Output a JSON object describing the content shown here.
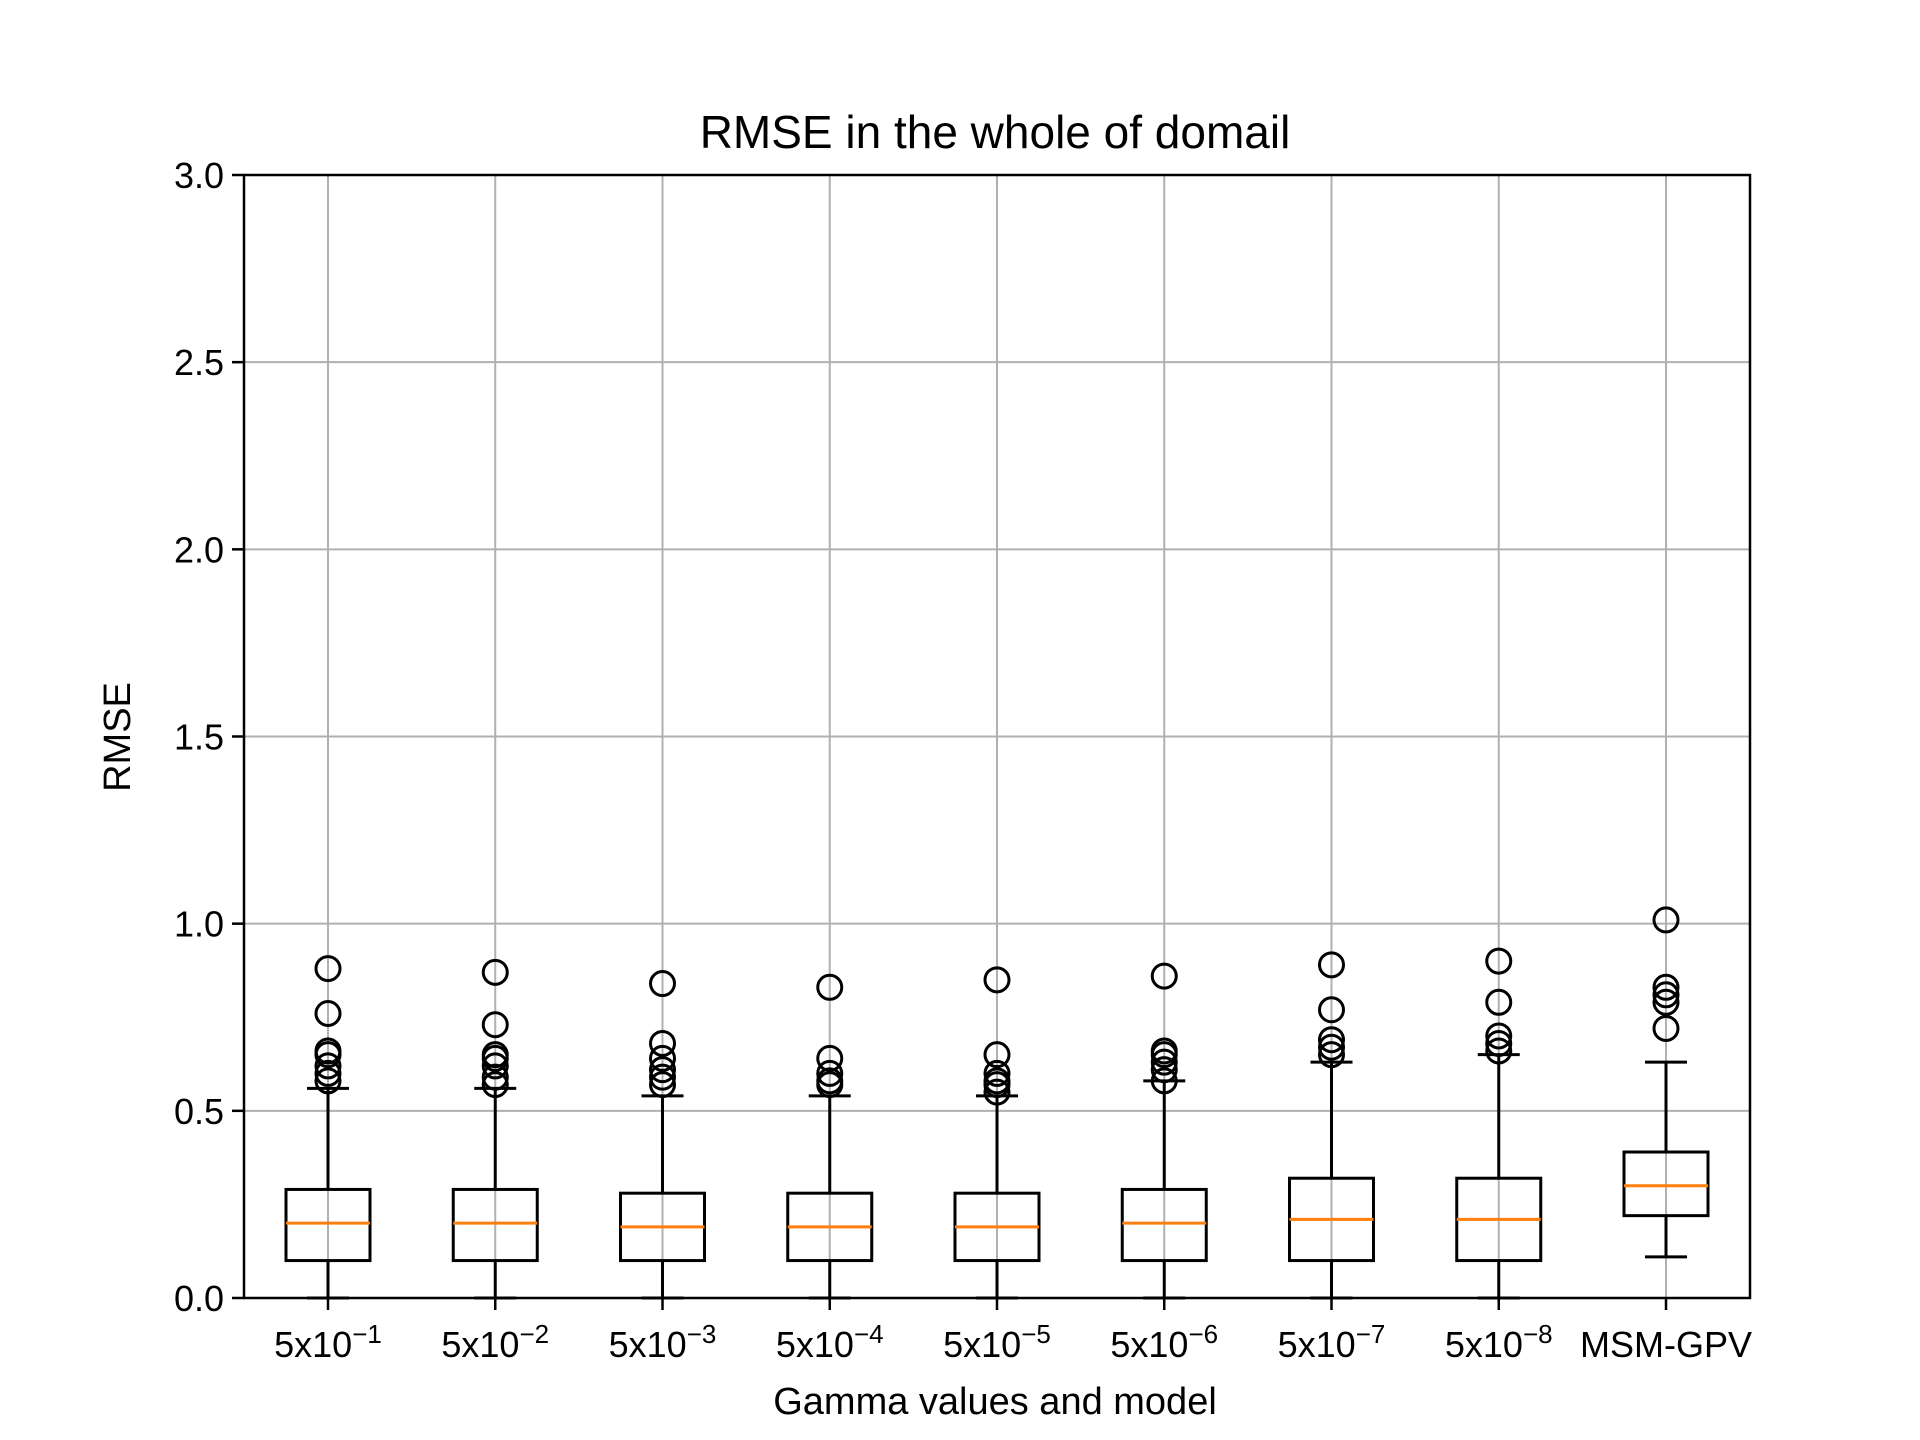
{
  "chart_data": {
    "type": "box",
    "title": "RMSE in the whole of domail",
    "xlabel": "Gamma values and model",
    "ylabel": "RMSE",
    "ylim": [
      0,
      3.0
    ],
    "yticks": [
      "0.0",
      "0.5",
      "1.0",
      "1.5",
      "2.0",
      "2.5",
      "3.0"
    ],
    "grid": true,
    "categories": [
      {
        "base": "5x10",
        "exp": "−1"
      },
      {
        "base": "5x10",
        "exp": "−2"
      },
      {
        "base": "5x10",
        "exp": "−3"
      },
      {
        "base": "5x10",
        "exp": "−4"
      },
      {
        "base": "5x10",
        "exp": "−5"
      },
      {
        "base": "5x10",
        "exp": "−6"
      },
      {
        "base": "5x10",
        "exp": "−7"
      },
      {
        "base": "5x10",
        "exp": "−8"
      },
      {
        "base": "MSM-GPV",
        "exp": ""
      }
    ],
    "boxes": [
      {
        "whislo": 0.0,
        "q1": 0.1,
        "med": 0.2,
        "q3": 0.29,
        "whishi": 0.56,
        "fliers": [
          0.58,
          0.6,
          0.62,
          0.65,
          0.66,
          0.76,
          0.88
        ]
      },
      {
        "whislo": 0.0,
        "q1": 0.1,
        "med": 0.2,
        "q3": 0.29,
        "whishi": 0.56,
        "fliers": [
          0.57,
          0.59,
          0.62,
          0.64,
          0.65,
          0.73,
          0.87
        ]
      },
      {
        "whislo": 0.0,
        "q1": 0.1,
        "med": 0.19,
        "q3": 0.28,
        "whishi": 0.54,
        "fliers": [
          0.57,
          0.59,
          0.61,
          0.64,
          0.68,
          0.84
        ]
      },
      {
        "whislo": 0.0,
        "q1": 0.1,
        "med": 0.19,
        "q3": 0.28,
        "whishi": 0.54,
        "fliers": [
          0.57,
          0.58,
          0.6,
          0.64,
          0.83
        ]
      },
      {
        "whislo": 0.0,
        "q1": 0.1,
        "med": 0.19,
        "q3": 0.28,
        "whishi": 0.54,
        "fliers": [
          0.55,
          0.57,
          0.58,
          0.6,
          0.65,
          0.85
        ]
      },
      {
        "whislo": 0.0,
        "q1": 0.1,
        "med": 0.2,
        "q3": 0.29,
        "whishi": 0.58,
        "fliers": [
          0.58,
          0.61,
          0.63,
          0.65,
          0.66,
          0.86
        ]
      },
      {
        "whislo": 0.0,
        "q1": 0.1,
        "med": 0.21,
        "q3": 0.32,
        "whishi": 0.63,
        "fliers": [
          0.65,
          0.67,
          0.69,
          0.77,
          0.89
        ]
      },
      {
        "whislo": 0.0,
        "q1": 0.1,
        "med": 0.21,
        "q3": 0.32,
        "whishi": 0.65,
        "fliers": [
          0.66,
          0.68,
          0.7,
          0.79,
          0.9
        ]
      },
      {
        "whislo": 0.11,
        "q1": 0.22,
        "med": 0.3,
        "q3": 0.39,
        "whishi": 0.63,
        "fliers": [
          0.72,
          0.79,
          0.81,
          0.83,
          1.01
        ]
      }
    ],
    "colors": {
      "box": "#000000",
      "median": "#ff7f0e",
      "grid": "#b0b0b0"
    }
  }
}
